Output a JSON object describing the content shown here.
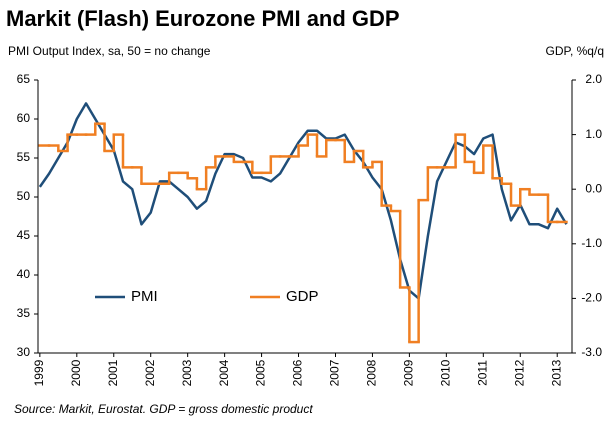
{
  "chart_data": {
    "type": "line",
    "title": "Markit (Flash) Eurozone PMI and GDP",
    "y_label": "PMI Output Index, sa, 50 = no change",
    "y2_label": "GDP, %q/q",
    "source": "Source: Markit, Eurostat. GDP = gross domestic product",
    "xlim": [
      1998.95,
      2013.4
    ],
    "xticks": [
      1999,
      2000,
      2001,
      2002,
      2003,
      2004,
      2005,
      2006,
      2007,
      2008,
      2009,
      2010,
      2011,
      2012,
      2013
    ],
    "ylim": [
      30,
      65
    ],
    "yticks": [
      30,
      35,
      40,
      45,
      50,
      55,
      60,
      65
    ],
    "y2lim": [
      -3,
      2
    ],
    "y2ticks": [
      {
        "value": -3,
        "label": "-3.0"
      },
      {
        "value": -2,
        "label": "-2.0"
      },
      {
        "value": -1,
        "label": "-1.0"
      },
      {
        "value": 0,
        "label": "0.0"
      },
      {
        "value": 1,
        "label": "1.0"
      },
      {
        "value": 2,
        "label": "2.0"
      }
    ],
    "legend": "lower left",
    "series": [
      {
        "name": "PMI",
        "color": "#1f4e79",
        "x": [
          1999.0,
          1999.25,
          1999.5,
          1999.75,
          2000.0,
          2000.25,
          2000.5,
          2000.75,
          2001.0,
          2001.25,
          2001.5,
          2001.75,
          2002.0,
          2002.25,
          2002.5,
          2002.75,
          2003.0,
          2003.25,
          2003.5,
          2003.75,
          2004.0,
          2004.25,
          2004.5,
          2004.75,
          2005.0,
          2005.25,
          2005.5,
          2005.75,
          2006.0,
          2006.25,
          2006.5,
          2006.75,
          2007.0,
          2007.25,
          2007.5,
          2007.75,
          2008.0,
          2008.25,
          2008.5,
          2008.75,
          2009.0,
          2009.25,
          2009.5,
          2009.75,
          2010.0,
          2010.25,
          2010.5,
          2010.75,
          2011.0,
          2011.25,
          2011.5,
          2011.75,
          2012.0,
          2012.25,
          2012.5,
          2012.75,
          2013.0,
          2013.25
        ],
        "values": [
          51.3,
          53,
          55,
          57,
          60,
          62,
          60,
          58,
          56,
          52,
          51,
          46.5,
          48,
          52,
          52,
          51,
          50,
          48.5,
          49.5,
          53,
          55.5,
          55.5,
          55,
          52.5,
          52.5,
          52,
          53,
          55,
          57,
          58.5,
          58.5,
          57.5,
          57.5,
          58,
          56,
          54.5,
          52.5,
          51,
          47,
          42,
          38,
          37,
          45,
          52,
          54.5,
          57,
          56.5,
          55.5,
          57.5,
          58,
          51,
          47,
          49,
          46.5,
          46.5,
          46,
          48.5,
          46.5
        ]
      },
      {
        "name": "GDP",
        "color": "#f07f22",
        "axis": "y2",
        "step": true,
        "x": [
          1999.0,
          1999.25,
          1999.5,
          1999.75,
          2000.0,
          2000.25,
          2000.5,
          2000.75,
          2001.0,
          2001.25,
          2001.5,
          2001.75,
          2002.0,
          2002.25,
          2002.5,
          2002.75,
          2003.0,
          2003.25,
          2003.5,
          2003.75,
          2004.0,
          2004.25,
          2004.5,
          2004.75,
          2005.0,
          2005.25,
          2005.5,
          2005.75,
          2006.0,
          2006.25,
          2006.5,
          2006.75,
          2007.0,
          2007.25,
          2007.5,
          2007.75,
          2008.0,
          2008.25,
          2008.5,
          2008.75,
          2009.0,
          2009.25,
          2009.5,
          2009.75,
          2010.0,
          2010.25,
          2010.5,
          2010.75,
          2011.0,
          2011.25,
          2011.5,
          2011.75,
          2012.0,
          2012.25,
          2012.5,
          2012.75,
          2013.0
        ],
        "values": [
          0.8,
          0.8,
          0.7,
          1.0,
          1.0,
          1.0,
          1.2,
          0.7,
          1.0,
          0.4,
          0.4,
          0.1,
          0.1,
          0.1,
          0.3,
          0.3,
          0.2,
          0.0,
          0.4,
          0.6,
          0.6,
          0.5,
          0.5,
          0.3,
          0.3,
          0.6,
          0.6,
          0.6,
          0.8,
          1.0,
          0.6,
          0.9,
          0.9,
          0.5,
          0.7,
          0.4,
          0.5,
          -0.3,
          -0.4,
          -1.8,
          -2.8,
          -0.2,
          0.4,
          0.4,
          0.4,
          1.0,
          0.5,
          0.3,
          0.8,
          0.2,
          0.1,
          -0.3,
          0.0,
          -0.1,
          -0.1,
          -0.6,
          -0.6
        ]
      }
    ]
  }
}
